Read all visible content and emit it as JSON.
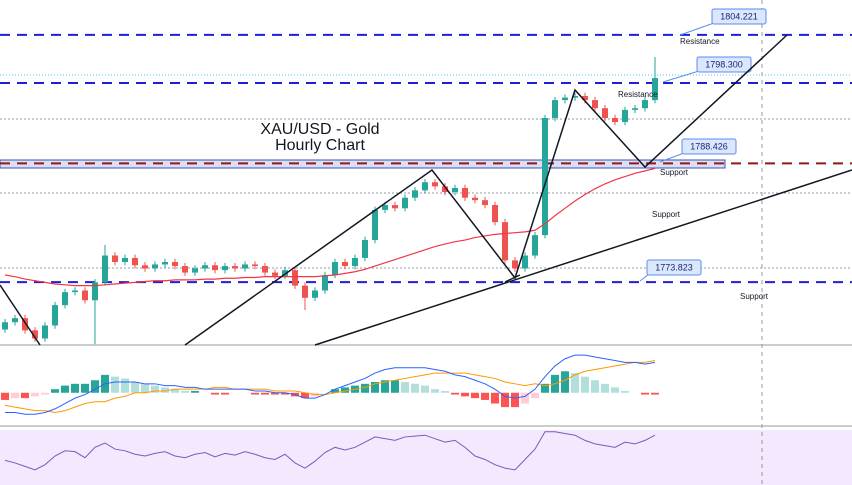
{
  "chart_data": [
    {
      "type": "candlestick",
      "title": [
        "XAU/USD - Gold",
        "Hourly Chart"
      ],
      "open": [
        1768.0,
        1768.9,
        1769.4,
        1767.9,
        1766.9,
        1768.5,
        1771.0,
        1772.6,
        1772.8,
        1771.6,
        1773.8,
        1777.1,
        1776.3,
        1776.8,
        1775.9,
        1775.5,
        1776.0,
        1776.3,
        1775.8,
        1775.0,
        1775.5,
        1775.9,
        1775.3,
        1775.8,
        1775.5,
        1776.0,
        1775.8,
        1775.0,
        1774.6,
        1775.3,
        1773.4,
        1771.9,
        1772.8,
        1774.7,
        1776.3,
        1775.8,
        1776.8,
        1779.0,
        1782.7,
        1783.3,
        1782.9,
        1784.2,
        1785.1,
        1786.1,
        1785.6,
        1784.9,
        1785.4,
        1784.2,
        1783.9,
        1783.3,
        1781.2,
        1776.5,
        1775.5,
        1777.1,
        1779.6,
        1794.0,
        1796.2,
        1796.5,
        1796.7,
        1796.2,
        1795.2,
        1794.0,
        1793.5,
        1795.0,
        1795.2,
        1796.2
      ],
      "high": [
        1769.3,
        1769.8,
        1769.8,
        1768.3,
        1768.9,
        1771.4,
        1773.0,
        1773.2,
        1773.2,
        1774.2,
        1778.4,
        1777.5,
        1777.2,
        1777.2,
        1776.3,
        1776.4,
        1776.7,
        1776.7,
        1776.2,
        1775.9,
        1776.3,
        1776.3,
        1776.2,
        1776.2,
        1776.4,
        1776.4,
        1776.2,
        1775.4,
        1775.7,
        1775.7,
        1773.8,
        1773.2,
        1775.1,
        1776.7,
        1776.7,
        1777.2,
        1779.4,
        1783.1,
        1783.7,
        1783.7,
        1784.6,
        1785.5,
        1786.5,
        1786.5,
        1786.0,
        1785.8,
        1785.8,
        1784.6,
        1784.3,
        1783.7,
        1781.6,
        1776.9,
        1777.5,
        1780.0,
        1794.4,
        1796.6,
        1796.9,
        1797.1,
        1797.1,
        1796.6,
        1795.6,
        1794.4,
        1795.4,
        1795.6,
        1796.6,
        1801.5
      ],
      "low": [
        1767.6,
        1768.5,
        1767.5,
        1766.5,
        1766.5,
        1768.1,
        1770.6,
        1772.2,
        1771.2,
        1766.2,
        1773.4,
        1775.9,
        1775.9,
        1775.5,
        1775.1,
        1775.1,
        1775.6,
        1775.4,
        1774.6,
        1774.6,
        1775.1,
        1774.9,
        1774.9,
        1775.1,
        1775.1,
        1775.4,
        1774.6,
        1774.2,
        1774.2,
        1773.0,
        1770.4,
        1771.5,
        1772.4,
        1774.3,
        1775.4,
        1775.4,
        1776.4,
        1778.6,
        1782.3,
        1782.5,
        1782.5,
        1783.8,
        1784.7,
        1785.2,
        1784.5,
        1784.5,
        1783.8,
        1783.5,
        1782.9,
        1780.8,
        1776.1,
        1775.1,
        1775.1,
        1776.7,
        1779.2,
        1793.6,
        1795.8,
        1796.1,
        1795.8,
        1794.8,
        1793.6,
        1793.1,
        1793.1,
        1794.6,
        1794.8,
        1795.8
      ],
      "close": [
        1768.9,
        1769.4,
        1767.9,
        1766.9,
        1768.5,
        1771.0,
        1772.6,
        1772.8,
        1771.6,
        1773.8,
        1777.1,
        1776.3,
        1776.8,
        1775.9,
        1775.5,
        1776.0,
        1776.3,
        1775.8,
        1775.0,
        1775.5,
        1775.9,
        1775.3,
        1775.8,
        1775.5,
        1776.0,
        1775.8,
        1775.0,
        1774.6,
        1775.3,
        1773.4,
        1771.9,
        1772.8,
        1774.7,
        1776.3,
        1775.8,
        1776.8,
        1779.0,
        1782.7,
        1783.3,
        1782.9,
        1784.2,
        1785.1,
        1786.1,
        1785.6,
        1784.9,
        1785.4,
        1784.2,
        1783.9,
        1783.3,
        1781.2,
        1776.5,
        1775.5,
        1777.1,
        1779.6,
        1794.0,
        1796.2,
        1796.5,
        1796.7,
        1796.2,
        1795.2,
        1794.0,
        1793.5,
        1795.0,
        1795.2,
        1796.2,
        1798.9
      ],
      "ma_values": [
        1774.7,
        1774.5,
        1774.2,
        1774.0,
        1773.8,
        1773.6,
        1773.5,
        1773.4,
        1773.4,
        1773.4,
        1773.5,
        1773.6,
        1773.7,
        1773.8,
        1773.9,
        1774.0,
        1774.0,
        1774.1,
        1774.1,
        1774.1,
        1774.2,
        1774.2,
        1774.3,
        1774.3,
        1774.4,
        1774.4,
        1774.5,
        1774.5,
        1774.5,
        1774.5,
        1774.5,
        1774.5,
        1774.6,
        1774.7,
        1774.9,
        1775.1,
        1775.4,
        1775.8,
        1776.2,
        1776.6,
        1777.0,
        1777.4,
        1777.8,
        1778.2,
        1778.5,
        1778.8,
        1779.0,
        1779.3,
        1779.5,
        1779.7,
        1779.8,
        1779.9,
        1780.0,
        1780.2,
        1781.0,
        1782.0,
        1782.9,
        1783.8,
        1784.6,
        1785.3,
        1785.9,
        1786.4,
        1786.8,
        1787.2,
        1787.5,
        1787.8
      ],
      "ma_color": "#f23645",
      "up_color": "#26a69a",
      "down_color": "#ef5350",
      "ylim": [
        1766.1,
        1808.5
      ],
      "levels": [
        {
          "value": 1804.221,
          "label": "1804.221",
          "color": "#1f1fd6"
        },
        {
          "value": 1798.3,
          "label": "1798.300",
          "color": "#1f1fd6"
        },
        {
          "value": 1788.426,
          "label": "1788.426",
          "color": "#8b1a1a"
        },
        {
          "value": 1773.823,
          "label": "1773.823",
          "color": "#1f1fd6"
        }
      ],
      "annotations": [
        "Resistance",
        "Resistance",
        "Support",
        "Support",
        "Support"
      ]
    },
    {
      "type": "macd",
      "ylim": [
        -1.8,
        2.5
      ],
      "histogram": [
        -0.4,
        -0.3,
        -0.3,
        -0.2,
        -0.1,
        0.2,
        0.4,
        0.5,
        0.5,
        0.7,
        1.0,
        0.9,
        0.8,
        0.6,
        0.5,
        0.4,
        0.3,
        0.2,
        0.1,
        0.1,
        0.0,
        -0.1,
        -0.1,
        0.0,
        0.0,
        -0.1,
        -0.1,
        -0.1,
        -0.1,
        -0.2,
        -0.3,
        -0.2,
        0.0,
        0.2,
        0.3,
        0.4,
        0.5,
        0.6,
        0.7,
        0.7,
        0.6,
        0.5,
        0.4,
        0.2,
        0.1,
        -0.1,
        -0.2,
        -0.3,
        -0.4,
        -0.6,
        -0.8,
        -0.8,
        -0.6,
        -0.3,
        0.5,
        1.0,
        1.2,
        1.1,
        0.9,
        0.7,
        0.5,
        0.3,
        0.1,
        0.0,
        -0.1,
        -0.1
      ],
      "macd": [
        -1.1,
        -1.1,
        -1.2,
        -1.2,
        -1.1,
        -0.9,
        -0.6,
        -0.3,
        -0.1,
        0.2,
        0.5,
        0.6,
        0.6,
        0.6,
        0.5,
        0.5,
        0.4,
        0.4,
        0.3,
        0.3,
        0.2,
        0.2,
        0.2,
        0.2,
        0.2,
        0.1,
        0.1,
        0.0,
        0.0,
        -0.1,
        -0.3,
        -0.3,
        -0.1,
        0.2,
        0.4,
        0.6,
        0.8,
        1.1,
        1.3,
        1.4,
        1.4,
        1.4,
        1.4,
        1.3,
        1.2,
        1.0,
        0.9,
        0.7,
        0.5,
        0.2,
        -0.2,
        -0.3,
        -0.2,
        0.2,
        0.9,
        1.5,
        1.9,
        2.1,
        2.1,
        2.0,
        1.9,
        1.8,
        1.7,
        1.7,
        1.6,
        1.7
      ],
      "signal": [
        -0.7,
        -0.8,
        -0.9,
        -1.0,
        -1.0,
        -1.1,
        -1.0,
        -0.8,
        -0.6,
        -0.5,
        -0.5,
        -0.3,
        -0.2,
        0.0,
        0.0,
        0.1,
        0.1,
        0.2,
        0.2,
        0.2,
        0.2,
        0.3,
        0.3,
        0.2,
        0.2,
        0.2,
        0.2,
        0.1,
        0.1,
        0.1,
        0.0,
        -0.1,
        -0.1,
        0.0,
        0.1,
        0.2,
        0.3,
        0.5,
        0.6,
        0.7,
        0.8,
        0.9,
        1.0,
        1.1,
        1.1,
        1.1,
        1.1,
        1.0,
        0.9,
        0.8,
        0.6,
        0.5,
        0.4,
        0.5,
        0.4,
        0.5,
        0.7,
        1.0,
        1.2,
        1.3,
        1.4,
        1.5,
        1.6,
        1.7,
        1.7,
        1.8
      ],
      "macd_color": "#2962ff",
      "signal_color": "#ff9800"
    },
    {
      "type": "rsi",
      "ylim": [
        20,
        80
      ],
      "color": "#7e57c2",
      "values": [
        45,
        42,
        38,
        34,
        40,
        50,
        56,
        55,
        48,
        60,
        65,
        58,
        56,
        52,
        50,
        53,
        55,
        50,
        48,
        52,
        54,
        49,
        53,
        51,
        55,
        52,
        48,
        46,
        52,
        42,
        36,
        44,
        54,
        60,
        57,
        60,
        66,
        72,
        70,
        68,
        72,
        73,
        74,
        70,
        66,
        68,
        60,
        50,
        46,
        40,
        36,
        34,
        46,
        58,
        78,
        78,
        76,
        74,
        68,
        64,
        62,
        60,
        66,
        64,
        68,
        74
      ]
    }
  ]
}
